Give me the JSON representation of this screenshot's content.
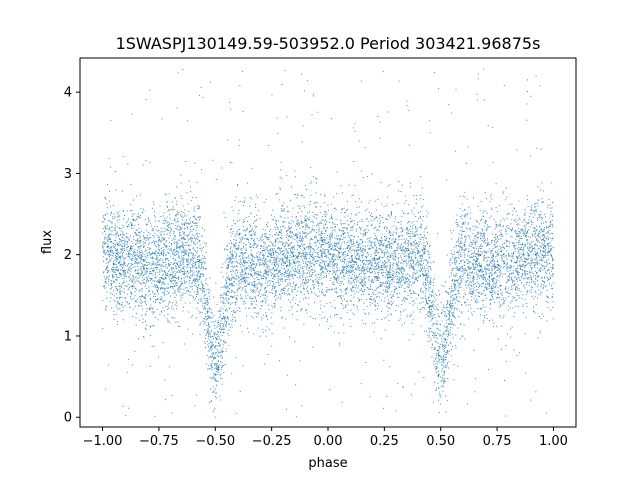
{
  "chart_data": {
    "type": "scatter",
    "title": "1SWASPJ130149.59-503952.0 Period 303421.96875s",
    "xlabel": "phase",
    "ylabel": "flux",
    "xlim": [
      -1.1,
      1.1
    ],
    "ylim": [
      -0.12,
      4.42
    ],
    "x_ticks": [
      -1.0,
      -0.75,
      -0.5,
      -0.25,
      0.0,
      0.25,
      0.5,
      0.75,
      1.0
    ],
    "x_tick_labels": [
      "−1.00",
      "−0.75",
      "−0.50",
      "−0.25",
      "0.00",
      "0.25",
      "0.50",
      "0.75",
      "1.00"
    ],
    "y_ticks": [
      0,
      1,
      2,
      3,
      4
    ],
    "y_tick_labels": [
      "0",
      "1",
      "2",
      "3",
      "4"
    ],
    "grid": false,
    "legend": "none",
    "marker_color": "#1f77b4",
    "series": [
      {
        "x_range": [
          -1.0,
          1.0
        ],
        "baseline_flux": 1.95,
        "scatter_sigma": 0.33,
        "dips": [
          {
            "phase": -0.5,
            "min_flux": 0.6
          },
          {
            "phase": 0.5,
            "min_flux": 0.6
          }
        ],
        "outlier_range": [
          0.0,
          4.3
        ]
      }
    ]
  }
}
